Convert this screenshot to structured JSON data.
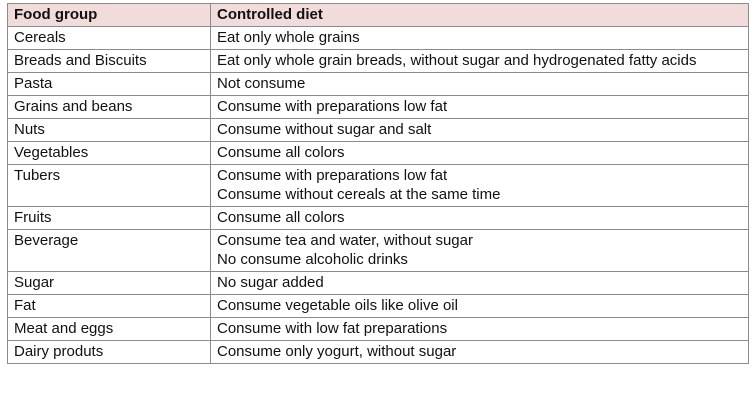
{
  "table": {
    "header": [
      "Food group",
      "Controlled diet"
    ],
    "rows": [
      [
        "Cereals",
        [
          "Eat only whole grains"
        ]
      ],
      [
        "Breads and Biscuits",
        [
          "Eat only whole grain breads, without sugar and hydrogenated fatty acids"
        ]
      ],
      [
        "Pasta",
        [
          "Not consume"
        ]
      ],
      [
        "Grains and beans",
        [
          "Consume with preparations low fat"
        ]
      ],
      [
        "Nuts",
        [
          "Consume without sugar and salt"
        ]
      ],
      [
        "Vegetables",
        [
          "Consume all colors"
        ]
      ],
      [
        "Tubers",
        [
          "Consume with preparations low fat",
          "Consume without cereals at the same time"
        ]
      ],
      [
        "Fruits",
        [
          "Consume all colors"
        ]
      ],
      [
        "Beverage",
        [
          "Consume tea and water, without sugar",
          "No consume alcoholic drinks"
        ]
      ],
      [
        "Sugar",
        [
          "No sugar added"
        ]
      ],
      [
        "Fat",
        [
          "Consume vegetable oils like olive oil"
        ]
      ],
      [
        "Meat and eggs",
        [
          "Consume with low fat preparations"
        ]
      ],
      [
        "Dairy produts",
        [
          "Consume only yogurt, without sugar"
        ]
      ]
    ]
  }
}
